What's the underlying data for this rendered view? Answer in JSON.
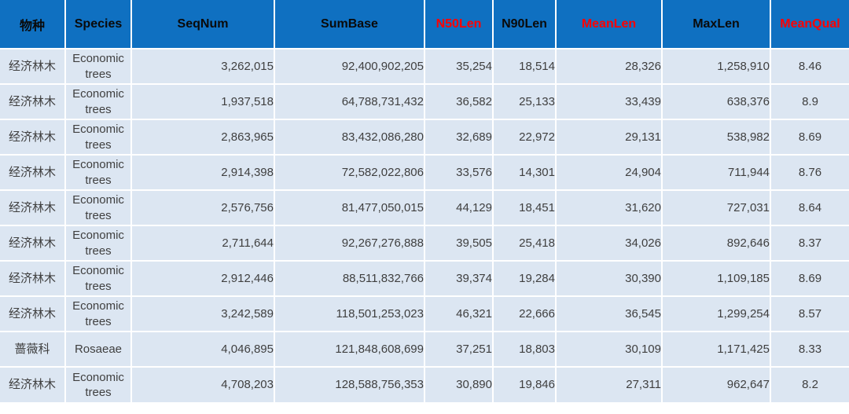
{
  "colors": {
    "header_bg": "#0f70c1",
    "header_text": "#0a0a0a",
    "header_text_highlight": "#ff0000",
    "row_bg": "#dce6f2",
    "cell_text": "#3f3f3f",
    "grid_line": "#ffffff"
  },
  "chart_data": {
    "type": "table",
    "columns": [
      {
        "key": "species-cn",
        "label": "物种",
        "highlight": false
      },
      {
        "key": "species-en",
        "label": "Species",
        "highlight": false
      },
      {
        "key": "seqnum",
        "label": "SeqNum",
        "highlight": false
      },
      {
        "key": "sumbase",
        "label": "SumBase",
        "highlight": false
      },
      {
        "key": "n50len",
        "label": "N50Len",
        "highlight": true
      },
      {
        "key": "n90len",
        "label": "N90Len",
        "highlight": false
      },
      {
        "key": "meanlen",
        "label": "MeanLen",
        "highlight": true
      },
      {
        "key": "maxlen",
        "label": "MaxLen",
        "highlight": false
      },
      {
        "key": "meanqual",
        "label": "MeanQual",
        "highlight": true
      }
    ],
    "rows": [
      [
        "经济林木",
        "Economic trees",
        "3,262,015",
        "92,400,902,205",
        "35,254",
        "18,514",
        "28,326",
        "1,258,910",
        "8.46"
      ],
      [
        "经济林木",
        "Economic trees",
        "1,937,518",
        "64,788,731,432",
        "36,582",
        "25,133",
        "33,439",
        "638,376",
        "8.9"
      ],
      [
        "经济林木",
        "Economic trees",
        "2,863,965",
        "83,432,086,280",
        "32,689",
        "22,972",
        "29,131",
        "538,982",
        "8.69"
      ],
      [
        "经济林木",
        "Economic trees",
        "2,914,398",
        "72,582,022,806",
        "33,576",
        "14,301",
        "24,904",
        "711,944",
        "8.76"
      ],
      [
        "经济林木",
        "Economic trees",
        "2,576,756",
        "81,477,050,015",
        "44,129",
        "18,451",
        "31,620",
        "727,031",
        "8.64"
      ],
      [
        "经济林木",
        "Economic trees",
        "2,711,644",
        "92,267,276,888",
        "39,505",
        "25,418",
        "34,026",
        "892,646",
        "8.37"
      ],
      [
        "经济林木",
        "Economic trees",
        "2,912,446",
        "88,511,832,766",
        "39,374",
        "19,284",
        "30,390",
        "1,109,185",
        "8.69"
      ],
      [
        "经济林木",
        "Economic trees",
        "3,242,589",
        "118,501,253,023",
        "46,321",
        "22,666",
        "36,545",
        "1,299,254",
        "8.57"
      ],
      [
        "蔷薇科",
        "Rosaeae",
        "4,046,895",
        "121,848,608,699",
        "37,251",
        "18,803",
        "30,109",
        "1,171,425",
        "8.33"
      ],
      [
        "经济林木",
        "Economic trees",
        "4,708,203",
        "128,588,756,353",
        "30,890",
        "19,846",
        "27,311",
        "962,647",
        "8.2"
      ]
    ]
  }
}
